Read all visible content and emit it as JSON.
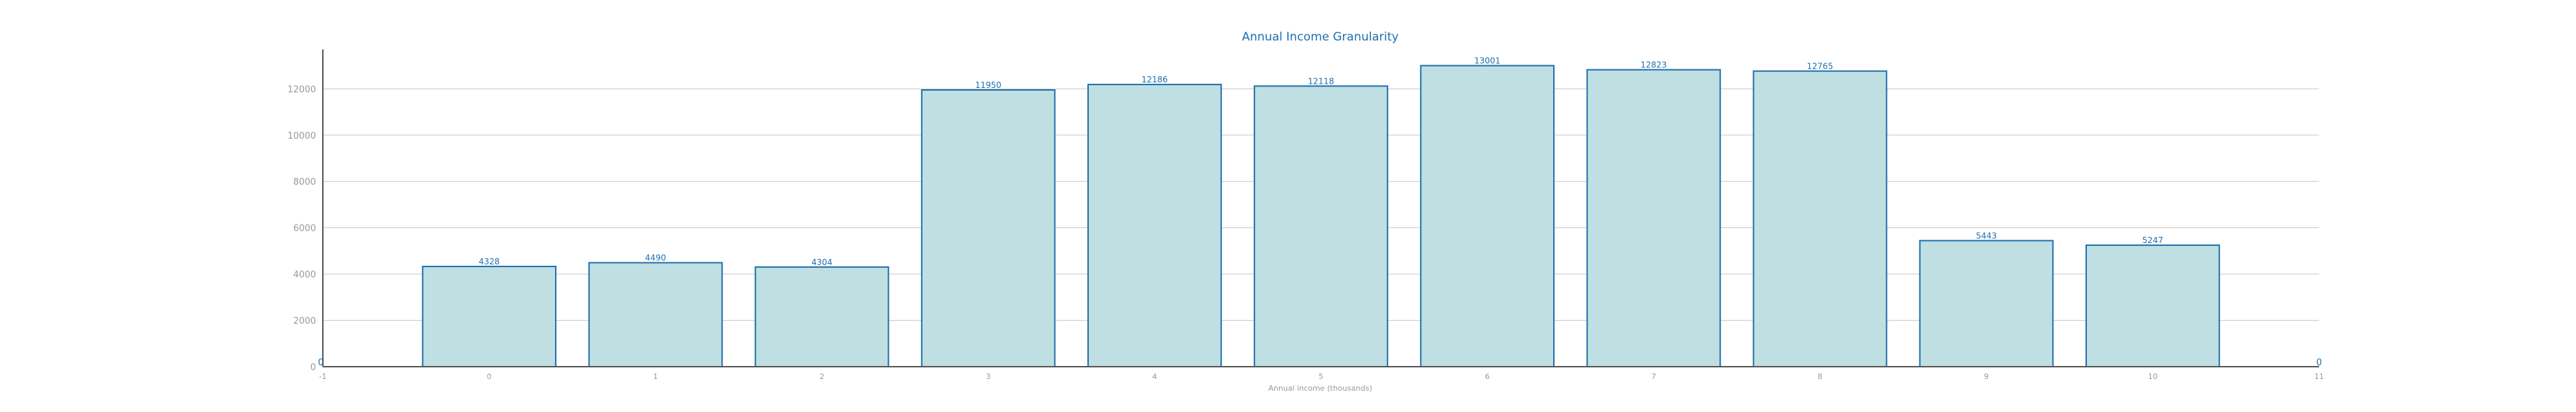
{
  "chart_data": {
    "type": "bar",
    "title": "Annual Income Granularity",
    "xlabel": "Annual income (thousands)",
    "ylabel": "",
    "categories": [
      "0",
      "1",
      "2",
      "3",
      "4",
      "5",
      "6",
      "7",
      "8",
      "9",
      "10"
    ],
    "values": [
      4328,
      4490,
      4304,
      11950,
      12186,
      12118,
      13001,
      12823,
      12765,
      5443,
      5247
    ],
    "data_labels": [
      "4328",
      "4490",
      "4304",
      "11950",
      "12186",
      "12118",
      "13001",
      "12823",
      "12765",
      "5443",
      "5247"
    ],
    "xlim": [
      -1,
      11
    ],
    "x_ticks": [
      "-1",
      "0",
      "1",
      "2",
      "3",
      "4",
      "5",
      "6",
      "7",
      "8",
      "9",
      "10",
      "11"
    ],
    "x_ticks_values": [
      -1,
      0,
      1,
      2,
      3,
      4,
      5,
      6,
      7,
      8,
      9,
      10,
      11
    ],
    "ylim": [
      0,
      13700
    ],
    "y_ticks": [
      "0",
      "2000",
      "4000",
      "6000",
      "8000",
      "10000",
      "12000"
    ],
    "y_ticks_values": [
      0,
      2000,
      4000,
      6000,
      8000,
      10000,
      12000
    ],
    "corner_labels": {
      "left": "0",
      "right": "0"
    },
    "grid": "horizontal",
    "legend": "none",
    "colors": {
      "bar_fill": "#bfdfe3",
      "bar_stroke": "#1f6fad",
      "grid": "#c8c8c8",
      "axis": "#555555",
      "tick_text": "#999999",
      "label_text": "#1f6fad",
      "title": "#1f6fad"
    }
  }
}
